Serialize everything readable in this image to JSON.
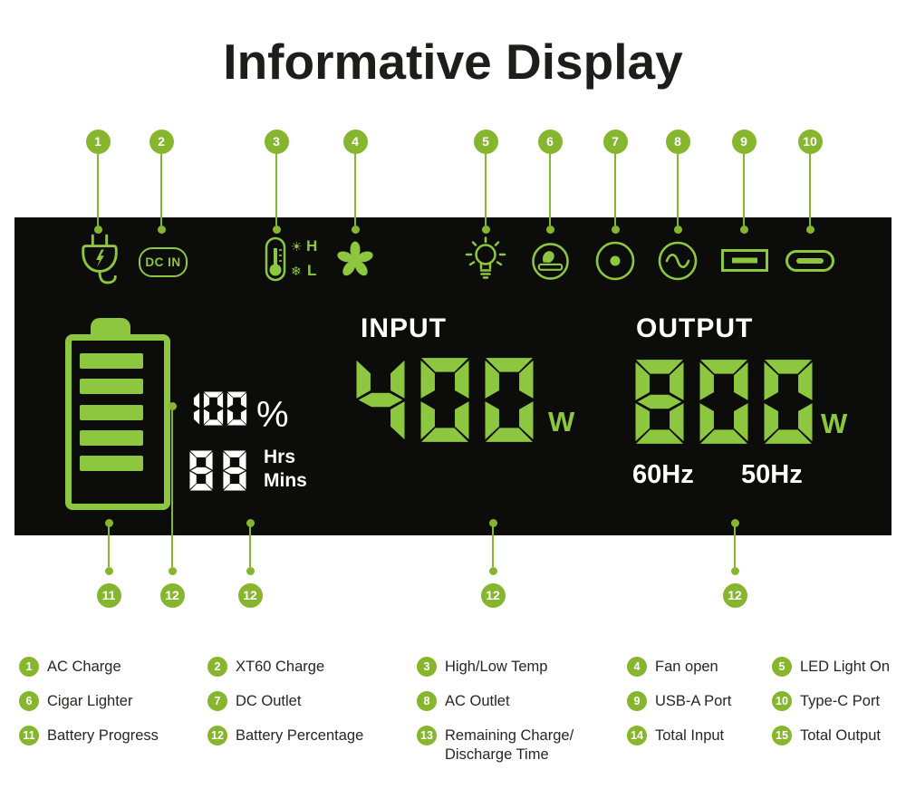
{
  "title": "Informative Display",
  "colors": {
    "accent_green": "#8dc63f",
    "callout_green": "#86b62e",
    "panel_bg": "#0c0c0a",
    "display_white": "#ffffff",
    "text_dark": "#1d1d1b"
  },
  "panel": {
    "dc_in_label": "DC IN",
    "temp": {
      "high_symbol": "☀",
      "high_label": "H",
      "low_symbol": "❄",
      "low_label": "L"
    },
    "battery_display": {
      "percent_value": "100",
      "percent_unit": "%",
      "time_value": "88",
      "time_unit_top": "Hrs",
      "time_unit_bottom": "Mins"
    },
    "input": {
      "label": "INPUT",
      "value": "400",
      "unit": "W"
    },
    "output": {
      "label": "OUTPUT",
      "value": "800",
      "unit": "W",
      "freqs": [
        "60Hz",
        "50Hz"
      ]
    }
  },
  "icons": [
    "ac-charge-plug",
    "xt60-dc-in",
    "high-low-temp-thermometer",
    "fan",
    "led-light-bulb",
    "cigar-lighter",
    "dc-outlet",
    "ac-outlet",
    "usb-a-port",
    "type-c-port"
  ],
  "top_callouts": [
    "1",
    "2",
    "3",
    "4",
    "5",
    "6",
    "7",
    "8",
    "9",
    "10"
  ],
  "bottom_callouts": [
    "11",
    "12",
    "12",
    "12",
    "12"
  ],
  "legend": [
    {
      "num": "1",
      "label": "AC Charge"
    },
    {
      "num": "2",
      "label": "XT60 Charge"
    },
    {
      "num": "3",
      "label": "High/Low Temp"
    },
    {
      "num": "4",
      "label": "Fan open"
    },
    {
      "num": "5",
      "label": "LED Light On"
    },
    {
      "num": "6",
      "label": "Cigar Lighter"
    },
    {
      "num": "7",
      "label": "DC Outlet"
    },
    {
      "num": "8",
      "label": "AC Outlet"
    },
    {
      "num": "9",
      "label": "USB-A Port"
    },
    {
      "num": "10",
      "label": "Type-C Port"
    },
    {
      "num": "11",
      "label": "Battery Progress"
    },
    {
      "num": "12",
      "label": "Battery Percentage"
    },
    {
      "num": "13",
      "label": "Remaining Charge/\nDischarge Time"
    },
    {
      "num": "14",
      "label": "Total Input"
    },
    {
      "num": "15",
      "label": "Total Output"
    }
  ]
}
